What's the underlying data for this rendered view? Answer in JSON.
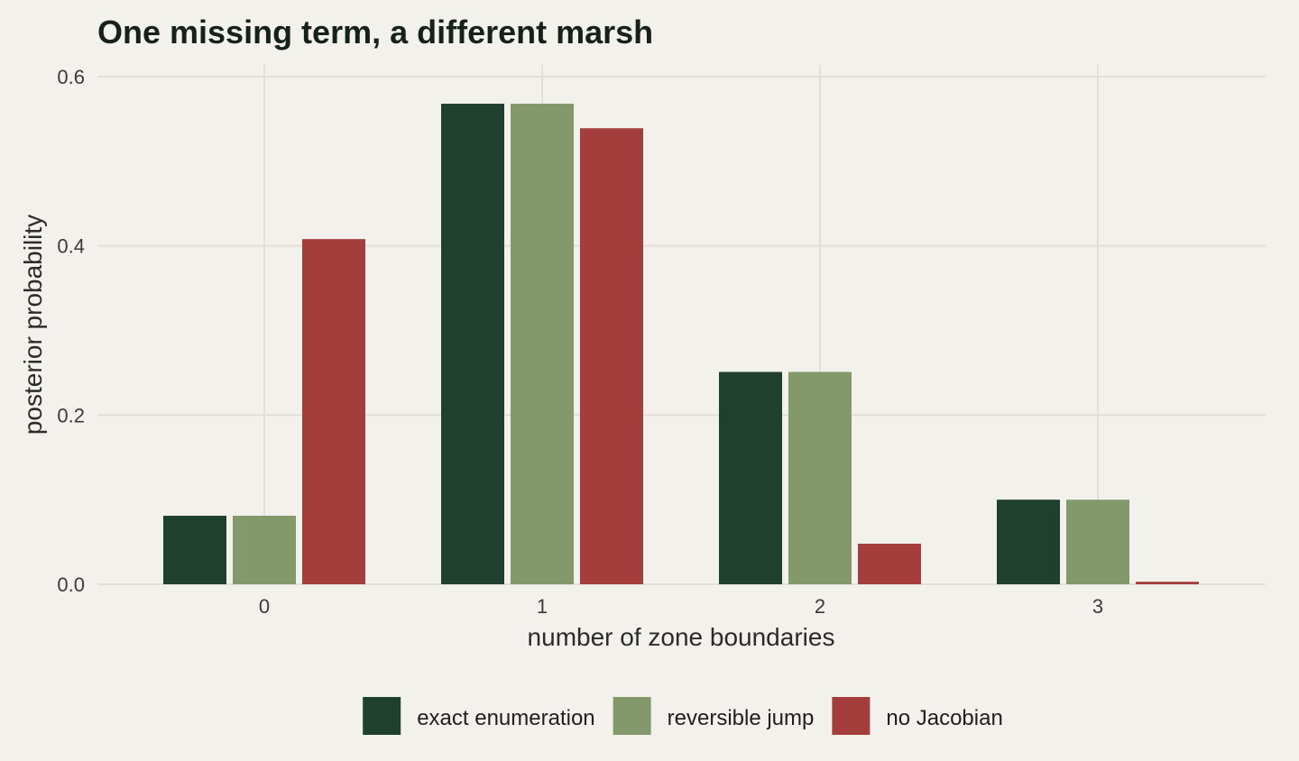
{
  "chart_data": {
    "type": "bar",
    "title": "One missing term, a different marsh",
    "xlabel": "number of zone boundaries",
    "ylabel": "posterior probability",
    "categories": [
      "0",
      "1",
      "2",
      "3"
    ],
    "ylim": [
      0,
      0.6
    ],
    "yticks": [
      "0.0",
      "0.2",
      "0.4",
      "0.6"
    ],
    "grid": true,
    "legend_position": "bottom",
    "series": [
      {
        "name": "exact enumeration",
        "color": "#20402f",
        "values": [
          0.081,
          0.568,
          0.251,
          0.1
        ]
      },
      {
        "name": "reversible jump",
        "color": "#83996c",
        "values": [
          0.081,
          0.568,
          0.251,
          0.1
        ]
      },
      {
        "name": "no Jacobian",
        "color": "#a33e3d",
        "values": [
          0.408,
          0.539,
          0.048,
          0.003
        ]
      }
    ]
  }
}
